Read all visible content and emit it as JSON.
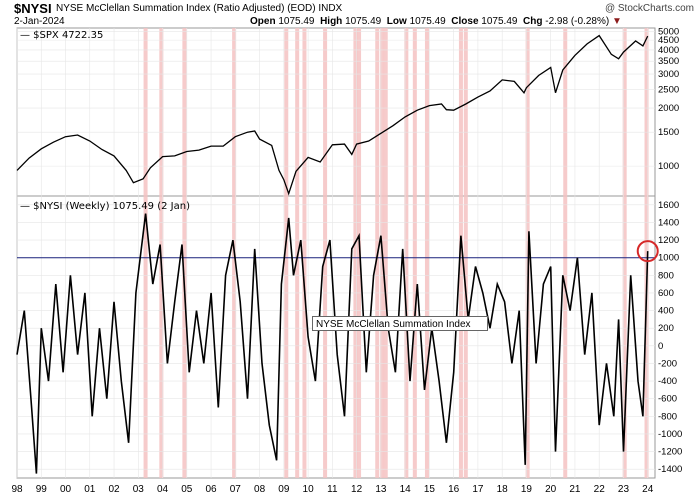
{
  "header": {
    "symbol": "$NYSI",
    "name": "NYSE McClellan Summation Index (Ratio Adjusted) (EOD)",
    "exchange": "INDX",
    "watermark": "@ StockCharts.com",
    "date": "2-Jan-2024",
    "open_label": "Open",
    "open": "1075.49",
    "high_label": "High",
    "high": "1075.49",
    "low_label": "Low",
    "low": "1075.49",
    "close_label": "Close",
    "close": "1075.49",
    "chg_label": "Chg",
    "chg": "-2.98 (-0.28%)",
    "chg_arrow": "▼"
  },
  "colors": {
    "band": "#f4c2c2",
    "line": "#000000",
    "reference": "#1a237e",
    "circle": "#d62828",
    "grid": "#e6e6e6"
  },
  "annotation": "NYSE McClellan Summation Index",
  "chart_data": [
    {
      "type": "line",
      "legend": "$SPX 4722.35",
      "y_scale": "log",
      "ylim": [
        700,
        5200
      ],
      "y_ticks": [
        "5000",
        "4500",
        "4000",
        "3500",
        "3000",
        "2500",
        "2000",
        "1500",
        "1000"
      ],
      "x": [
        1998.0,
        1998.5,
        1999.0,
        1999.5,
        2000.0,
        2000.5,
        2001.0,
        2001.5,
        2002.0,
        2002.5,
        2002.8,
        2003.2,
        2003.5,
        2004.0,
        2004.5,
        2005.0,
        2005.5,
        2006.0,
        2006.5,
        2007.0,
        2007.5,
        2007.8,
        2008.0,
        2008.5,
        2008.8,
        2009.0,
        2009.2,
        2009.5,
        2010.0,
        2010.5,
        2011.0,
        2011.5,
        2011.8,
        2012.0,
        2012.5,
        2013.0,
        2013.5,
        2014.0,
        2014.5,
        2015.0,
        2015.5,
        2015.7,
        2016.0,
        2016.5,
        2017.0,
        2017.5,
        2018.0,
        2018.5,
        2018.9,
        2019.0,
        2019.5,
        2020.0,
        2020.2,
        2020.5,
        2021.0,
        2021.5,
        2022.0,
        2022.5,
        2022.8,
        2023.0,
        2023.5,
        2023.8,
        2024.0
      ],
      "values": [
        950,
        1100,
        1230,
        1330,
        1420,
        1450,
        1350,
        1220,
        1130,
        950,
        820,
        860,
        980,
        1120,
        1130,
        1190,
        1210,
        1270,
        1270,
        1420,
        1500,
        1520,
        1380,
        1280,
        950,
        850,
        720,
        940,
        1110,
        1050,
        1290,
        1300,
        1150,
        1300,
        1350,
        1480,
        1620,
        1800,
        1950,
        2060,
        2100,
        1960,
        1950,
        2100,
        2280,
        2450,
        2800,
        2750,
        2400,
        2550,
        2950,
        3250,
        2400,
        3150,
        3750,
        4300,
        4750,
        3800,
        3600,
        3900,
        4450,
        4200,
        4722
      ]
    },
    {
      "type": "line",
      "legend": "$NYSI (Weekly) 1075.49 (2 Jan)",
      "ylim": [
        -1500,
        1700
      ],
      "y_ticks": [
        "1600",
        "1400",
        "1200",
        "1000",
        "800",
        "600",
        "400",
        "200",
        "0",
        "-200",
        "-400",
        "-600",
        "-800",
        "-1000",
        "-1200",
        "-1400"
      ],
      "reference_line": 1000,
      "x_ticks": [
        "98",
        "99",
        "00",
        "01",
        "02",
        "03",
        "04",
        "05",
        "06",
        "07",
        "08",
        "09",
        "10",
        "11",
        "12",
        "13",
        "14",
        "15",
        "16",
        "17",
        "18",
        "19",
        "20",
        "21",
        "22",
        "23",
        "24"
      ],
      "shaded_years": [
        2003.3,
        2003.95,
        2004.9,
        2006.95,
        2009.1,
        2009.55,
        2009.85,
        2010.7,
        2011.95,
        2012.1,
        2012.85,
        2013.05,
        2013.2,
        2014.05,
        2014.4,
        2014.9,
        2016.3,
        2016.5,
        2019.05,
        2020.6,
        2023.05,
        2023.95
      ],
      "x": [
        1998.0,
        1998.3,
        1998.6,
        1998.8,
        1999.0,
        1999.3,
        1999.6,
        1999.9,
        2000.2,
        2000.5,
        2000.8,
        2001.1,
        2001.4,
        2001.7,
        2002.0,
        2002.3,
        2002.6,
        2002.9,
        2003.3,
        2003.6,
        2003.9,
        2004.2,
        2004.5,
        2004.8,
        2005.1,
        2005.4,
        2005.7,
        2006.0,
        2006.3,
        2006.6,
        2006.9,
        2007.2,
        2007.5,
        2007.8,
        2008.1,
        2008.4,
        2008.7,
        2008.9,
        2009.2,
        2009.4,
        2009.7,
        2010.0,
        2010.3,
        2010.6,
        2010.9,
        2011.2,
        2011.5,
        2011.8,
        2012.1,
        2012.4,
        2012.7,
        2013.0,
        2013.3,
        2013.6,
        2013.9,
        2014.2,
        2014.5,
        2014.8,
        2015.1,
        2015.4,
        2015.7,
        2016.0,
        2016.3,
        2016.6,
        2016.9,
        2017.2,
        2017.5,
        2017.8,
        2018.1,
        2018.4,
        2018.7,
        2018.95,
        2019.1,
        2019.4,
        2019.7,
        2020.0,
        2020.2,
        2020.5,
        2020.8,
        2021.1,
        2021.4,
        2021.7,
        2022.0,
        2022.3,
        2022.6,
        2022.8,
        2023.0,
        2023.3,
        2023.6,
        2023.8,
        2024.0
      ],
      "values": [
        -100,
        400,
        -700,
        -1450,
        200,
        -400,
        700,
        -300,
        800,
        -100,
        600,
        -800,
        200,
        -600,
        500,
        -400,
        -1100,
        600,
        1500,
        700,
        1150,
        -200,
        500,
        1150,
        -300,
        400,
        -200,
        600,
        -700,
        800,
        1200,
        500,
        -600,
        1100,
        -200,
        -900,
        -1300,
        700,
        1450,
        800,
        1200,
        100,
        -400,
        900,
        1200,
        -100,
        -800,
        1100,
        1250,
        -300,
        800,
        1250,
        200,
        -300,
        1100,
        -400,
        700,
        -500,
        200,
        -400,
        -1100,
        -300,
        1250,
        300,
        900,
        600,
        200,
        700,
        500,
        -200,
        400,
        -1350,
        1300,
        -200,
        700,
        900,
        -1200,
        800,
        400,
        1000,
        -100,
        600,
        -900,
        -200,
        -800,
        300,
        -1200,
        800,
        -400,
        -800,
        1075
      ]
    }
  ]
}
